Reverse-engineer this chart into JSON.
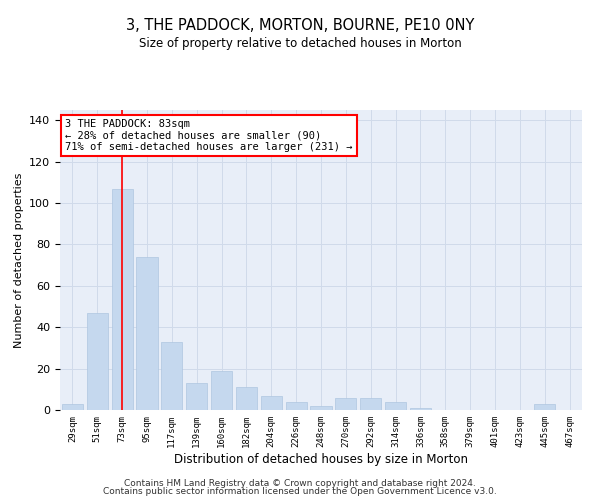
{
  "title": "3, THE PADDOCK, MORTON, BOURNE, PE10 0NY",
  "subtitle": "Size of property relative to detached houses in Morton",
  "xlabel": "Distribution of detached houses by size in Morton",
  "ylabel": "Number of detached properties",
  "categories": [
    "29sqm",
    "51sqm",
    "73sqm",
    "95sqm",
    "117sqm",
    "139sqm",
    "160sqm",
    "182sqm",
    "204sqm",
    "226sqm",
    "248sqm",
    "270sqm",
    "292sqm",
    "314sqm",
    "336sqm",
    "358sqm",
    "379sqm",
    "401sqm",
    "423sqm",
    "445sqm",
    "467sqm"
  ],
  "values": [
    3,
    47,
    107,
    74,
    33,
    13,
    19,
    11,
    7,
    4,
    2,
    6,
    6,
    4,
    1,
    0,
    0,
    0,
    0,
    3,
    0
  ],
  "bar_color": "#c5d8ee",
  "bar_edgecolor": "#aec6e0",
  "grid_color": "#d0daea",
  "bg_color": "#e8eef8",
  "red_line_x": 2,
  "annotation_text": "3 THE PADDOCK: 83sqm\n← 28% of detached houses are smaller (90)\n71% of semi-detached houses are larger (231) →",
  "annotation_box_color": "white",
  "annotation_box_edgecolor": "red",
  "ylim": [
    0,
    145
  ],
  "yticks": [
    0,
    20,
    40,
    60,
    80,
    100,
    120,
    140
  ],
  "footer_line1": "Contains HM Land Registry data © Crown copyright and database right 2024.",
  "footer_line2": "Contains public sector information licensed under the Open Government Licence v3.0."
}
